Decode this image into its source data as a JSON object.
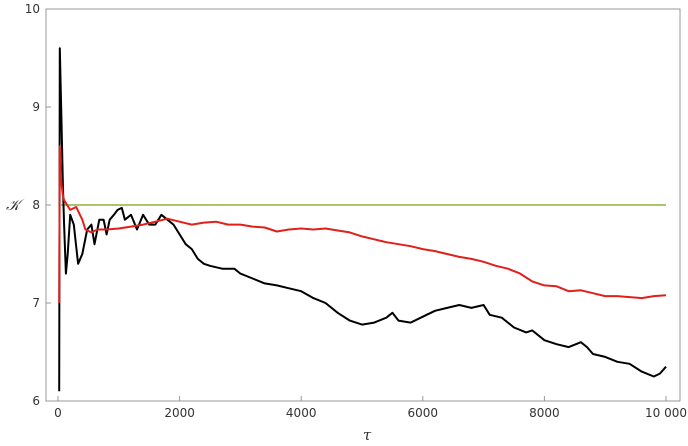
{
  "chart_data": {
    "type": "line",
    "title": "",
    "xlabel": "τ",
    "ylabel": "𝒦",
    "xlim": [
      0,
      10000
    ],
    "ylim": [
      6,
      10
    ],
    "x_ticks": [
      0,
      2000,
      4000,
      6000,
      8000,
      10000
    ],
    "x_tick_labels": [
      "0",
      "2000",
      "4000",
      "6000",
      "8000",
      "10 000"
    ],
    "y_ticks": [
      6,
      7,
      8,
      9,
      10
    ],
    "y_tick_labels": [
      "6",
      "7",
      "8",
      "9",
      "10"
    ],
    "grid": false,
    "legend": "none",
    "colors": {
      "black_series": "#000000",
      "red_series": "#e0201b",
      "reference_line": "#8db43c",
      "axes": "#999999"
    },
    "series": [
      {
        "color": "#000000",
        "points": [
          [
            20,
            6.1
          ],
          [
            30,
            9.6
          ],
          [
            45,
            9.2
          ],
          [
            60,
            8.8
          ],
          [
            80,
            8.2
          ],
          [
            100,
            7.8
          ],
          [
            130,
            7.3
          ],
          [
            160,
            7.5
          ],
          [
            200,
            7.9
          ],
          [
            260,
            7.8
          ],
          [
            330,
            7.4
          ],
          [
            400,
            7.5
          ],
          [
            480,
            7.75
          ],
          [
            550,
            7.8
          ],
          [
            600,
            7.6
          ],
          [
            680,
            7.85
          ],
          [
            750,
            7.85
          ],
          [
            800,
            7.7
          ],
          [
            850,
            7.85
          ],
          [
            920,
            7.9
          ],
          [
            980,
            7.95
          ],
          [
            1050,
            7.97
          ],
          [
            1100,
            7.85
          ],
          [
            1200,
            7.9
          ],
          [
            1300,
            7.75
          ],
          [
            1400,
            7.9
          ],
          [
            1500,
            7.8
          ],
          [
            1600,
            7.8
          ],
          [
            1700,
            7.9
          ],
          [
            1800,
            7.85
          ],
          [
            1900,
            7.8
          ],
          [
            2000,
            7.7
          ],
          [
            2100,
            7.6
          ],
          [
            2200,
            7.55
          ],
          [
            2300,
            7.45
          ],
          [
            2400,
            7.4
          ],
          [
            2500,
            7.38
          ],
          [
            2700,
            7.35
          ],
          [
            2900,
            7.35
          ],
          [
            3000,
            7.3
          ],
          [
            3200,
            7.25
          ],
          [
            3400,
            7.2
          ],
          [
            3600,
            7.18
          ],
          [
            3800,
            7.15
          ],
          [
            4000,
            7.12
          ],
          [
            4200,
            7.05
          ],
          [
            4400,
            7.0
          ],
          [
            4600,
            6.9
          ],
          [
            4800,
            6.82
          ],
          [
            5000,
            6.78
          ],
          [
            5200,
            6.8
          ],
          [
            5400,
            6.85
          ],
          [
            5500,
            6.9
          ],
          [
            5600,
            6.82
          ],
          [
            5800,
            6.8
          ],
          [
            6000,
            6.86
          ],
          [
            6200,
            6.92
          ],
          [
            6400,
            6.95
          ],
          [
            6600,
            6.98
          ],
          [
            6800,
            6.95
          ],
          [
            7000,
            6.98
          ],
          [
            7100,
            6.88
          ],
          [
            7300,
            6.85
          ],
          [
            7500,
            6.75
          ],
          [
            7700,
            6.7
          ],
          [
            7800,
            6.72
          ],
          [
            8000,
            6.62
          ],
          [
            8200,
            6.58
          ],
          [
            8400,
            6.55
          ],
          [
            8600,
            6.6
          ],
          [
            8700,
            6.55
          ],
          [
            8800,
            6.48
          ],
          [
            9000,
            6.45
          ],
          [
            9200,
            6.4
          ],
          [
            9400,
            6.38
          ],
          [
            9600,
            6.3
          ],
          [
            9800,
            6.25
          ],
          [
            9900,
            6.28
          ],
          [
            10000,
            6.35
          ]
        ]
      },
      {
        "color": "#e0201b",
        "points": [
          [
            20,
            7.0
          ],
          [
            30,
            8.6
          ],
          [
            45,
            8.3
          ],
          [
            60,
            8.2
          ],
          [
            80,
            8.1
          ],
          [
            100,
            8.05
          ],
          [
            150,
            8.0
          ],
          [
            200,
            7.95
          ],
          [
            300,
            7.98
          ],
          [
            400,
            7.85
          ],
          [
            450,
            7.75
          ],
          [
            550,
            7.72
          ],
          [
            650,
            7.75
          ],
          [
            800,
            7.75
          ],
          [
            1000,
            7.76
          ],
          [
            1200,
            7.78
          ],
          [
            1400,
            7.8
          ],
          [
            1600,
            7.83
          ],
          [
            1800,
            7.86
          ],
          [
            2000,
            7.83
          ],
          [
            2200,
            7.8
          ],
          [
            2400,
            7.82
          ],
          [
            2600,
            7.83
          ],
          [
            2800,
            7.8
          ],
          [
            3000,
            7.8
          ],
          [
            3200,
            7.78
          ],
          [
            3400,
            7.77
          ],
          [
            3600,
            7.73
          ],
          [
            3800,
            7.75
          ],
          [
            4000,
            7.76
          ],
          [
            4200,
            7.75
          ],
          [
            4400,
            7.76
          ],
          [
            4600,
            7.74
          ],
          [
            4800,
            7.72
          ],
          [
            5000,
            7.68
          ],
          [
            5200,
            7.65
          ],
          [
            5400,
            7.62
          ],
          [
            5600,
            7.6
          ],
          [
            5800,
            7.58
          ],
          [
            6000,
            7.55
          ],
          [
            6200,
            7.53
          ],
          [
            6400,
            7.5
          ],
          [
            6600,
            7.47
          ],
          [
            6800,
            7.45
          ],
          [
            7000,
            7.42
          ],
          [
            7200,
            7.38
          ],
          [
            7400,
            7.35
          ],
          [
            7600,
            7.3
          ],
          [
            7800,
            7.22
          ],
          [
            8000,
            7.18
          ],
          [
            8200,
            7.17
          ],
          [
            8400,
            7.12
          ],
          [
            8600,
            7.13
          ],
          [
            8800,
            7.1
          ],
          [
            9000,
            7.07
          ],
          [
            9200,
            7.07
          ],
          [
            9400,
            7.06
          ],
          [
            9600,
            7.05
          ],
          [
            9800,
            7.07
          ],
          [
            10000,
            7.08
          ]
        ]
      },
      {
        "color": "#8db43c",
        "points": [
          [
            50,
            8.0
          ],
          [
            10000,
            8.0
          ]
        ]
      }
    ]
  }
}
